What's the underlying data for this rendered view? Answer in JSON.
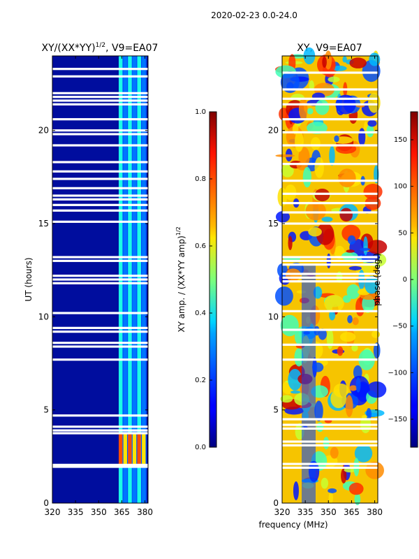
{
  "figure_title": "2020-02-23 0.0-24.0",
  "chart_data": [
    {
      "type": "heatmap",
      "title": "XY/(XX*YY)",
      "title_superscript": "1/2",
      "title_suffix": ", V9=EA07",
      "xlabel": "",
      "ylabel": "UT (hours)",
      "xlim": [
        320,
        382
      ],
      "ylim": [
        0,
        24
      ],
      "xticks": [
        320,
        335,
        350,
        365,
        380
      ],
      "yticks": [
        0,
        5,
        10,
        15,
        20
      ],
      "colormap": "jet",
      "colorbar": {
        "label": "XY amp. / (XX*YY amp)",
        "label_superscript": "1/2",
        "range": [
          0.0,
          1.0
        ],
        "ticks": [
          "0.0",
          "0.2",
          "0.4",
          "0.6",
          "0.8",
          "1.0"
        ]
      },
      "description_values": {
        "band_structure_freq_edges": [
          320,
          363,
          366,
          369,
          372,
          375,
          378,
          381
        ],
        "low_freq_value": 0.05,
        "high_freq_value": 0.4,
        "bright_interval_hours": [
          2.0,
          3.7
        ],
        "bright_value": 0.8
      },
      "gap_hours": [
        1.95,
        2.05,
        3.75,
        3.9,
        4.1,
        4.7,
        7.7,
        8.4,
        8.6,
        9.2,
        9.4,
        10.2,
        11.8,
        12.0,
        12.2,
        13.0,
        13.2,
        15.1,
        15.7,
        16.0,
        16.3,
        16.5,
        16.9,
        17.4,
        17.8,
        18.3,
        19.2,
        19.8,
        20.0,
        20.6,
        21.4,
        21.6,
        21.8,
        22.0,
        22.9,
        23.3
      ]
    },
    {
      "type": "heatmap",
      "title": "XY, V9=EA07",
      "xlabel": "frequency (MHz)",
      "ylabel": "",
      "xlim": [
        320,
        382
      ],
      "ylim": [
        0,
        24
      ],
      "xticks": [
        320,
        335,
        350,
        365,
        380
      ],
      "yticks": [
        0,
        5,
        10,
        15,
        20
      ],
      "colormap": "jet",
      "colorbar": {
        "label": "phase (deg.)",
        "range": [
          -180,
          180
        ],
        "ticks": [
          "−150",
          "−100",
          "−50",
          "0",
          "50",
          "100",
          "150"
        ]
      },
      "gap_hours": [
        1.9,
        2.1,
        3.1,
        3.3,
        4.0,
        4.2,
        4.5,
        7.7,
        8.5,
        9.3,
        10.3,
        11.9,
        12.1,
        12.3,
        12.8,
        13.0,
        13.2,
        15.0,
        15.6,
        16.1,
        16.6,
        17.3,
        18.2,
        19.2,
        19.9,
        20.6,
        21.4,
        21.7,
        22.2,
        23.1
      ]
    }
  ]
}
